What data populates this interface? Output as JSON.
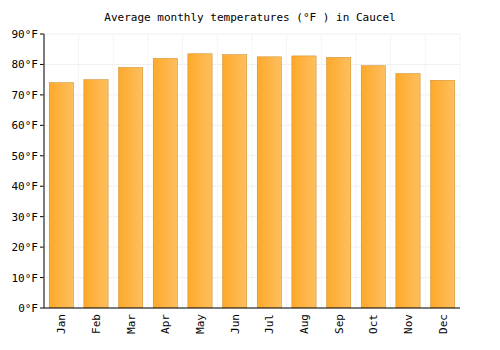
{
  "chart_data": {
    "type": "bar",
    "title": "Average monthly temperatures (°F ) in Caucel",
    "categories": [
      "Jan",
      "Feb",
      "Mar",
      "Apr",
      "May",
      "Jun",
      "Jul",
      "Aug",
      "Sep",
      "Oct",
      "Nov",
      "Dec"
    ],
    "values": [
      74,
      75,
      79,
      82,
      83.5,
      83.2,
      82.5,
      82.8,
      82.3,
      79.6,
      77,
      74.8
    ],
    "color": "#fda92a",
    "ylim": [
      0,
      90
    ],
    "yticks": [
      {
        "value": 0,
        "label": "0°F"
      },
      {
        "value": 10,
        "label": "10°F"
      },
      {
        "value": 20,
        "label": "20°F"
      },
      {
        "value": 30,
        "label": "30°F"
      },
      {
        "value": 40,
        "label": "40°F"
      },
      {
        "value": 50,
        "label": "50°F"
      },
      {
        "value": 60,
        "label": "60°F"
      },
      {
        "value": 70,
        "label": "70°F"
      },
      {
        "value": 80,
        "label": "80°F"
      },
      {
        "value": 90,
        "label": "90°F"
      }
    ],
    "grid": true
  }
}
